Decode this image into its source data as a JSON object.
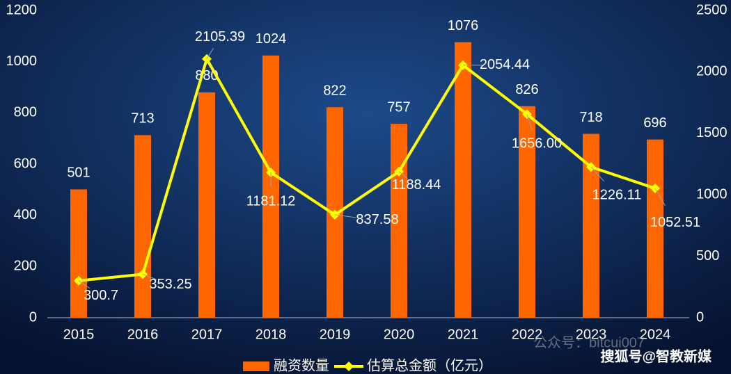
{
  "chart_data": {
    "type": "bar-line",
    "categories": [
      "2015",
      "2016",
      "2017",
      "2018",
      "2019",
      "2020",
      "2021",
      "2022",
      "2023",
      "2024"
    ],
    "series": [
      {
        "name": "融资数量",
        "type": "bar",
        "color": "#ff6600",
        "values": [
          501,
          713,
          880,
          1024,
          822,
          757,
          1076,
          826,
          718,
          696
        ]
      },
      {
        "name": "估算总金额（亿元）",
        "type": "line",
        "axis": "y2",
        "color": "#ffff00",
        "values": [
          300.7,
          353.25,
          2105.39,
          1181.12,
          837.58,
          1188.44,
          2054.44,
          1656.0,
          1226.11,
          1052.51
        ],
        "value_labels": [
          "300.7",
          "353.25",
          "2105.39",
          "1181.12",
          "837.58",
          "1188.44",
          "2054.44",
          "1656.00",
          "1226.11",
          "1052.51"
        ]
      }
    ],
    "ylim": [
      0,
      1200
    ],
    "yticks": [
      0,
      200,
      400,
      600,
      800,
      1000,
      1200
    ],
    "y2lim": [
      0,
      2500
    ],
    "y2ticks": [
      0,
      500,
      1000,
      1500,
      2000,
      2500
    ],
    "legend": "bottom",
    "watermarks": [
      "公众号：bitcui007",
      "搜狐号@智教新媒"
    ]
  }
}
